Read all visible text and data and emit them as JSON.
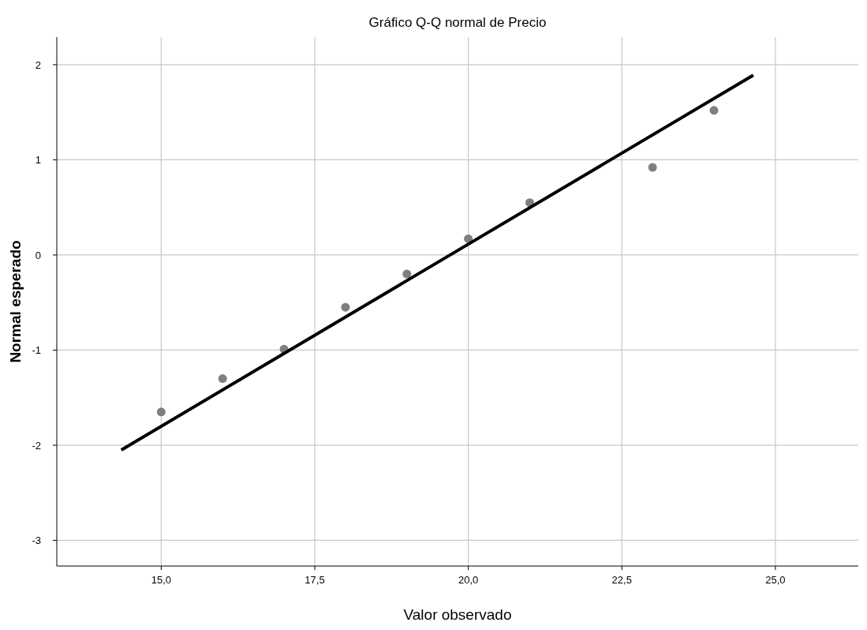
{
  "chart_data": {
    "type": "scatter",
    "title": "Gráfico Q-Q normal de Precio",
    "xlabel": "Valor observado",
    "ylabel": "Normal esperado",
    "xlim": [
      13.3,
      26.35
    ],
    "ylim": [
      -3.27,
      2.29
    ],
    "xticks": [
      {
        "value": 15,
        "label": "15,0"
      },
      {
        "value": 17.5,
        "label": "17,5"
      },
      {
        "value": 20,
        "label": "20,0"
      },
      {
        "value": 22.5,
        "label": "22,5"
      },
      {
        "value": 25,
        "label": "25,0"
      }
    ],
    "yticks": [
      -3,
      -2,
      -1,
      0,
      1,
      2
    ],
    "grid": true,
    "series": [
      {
        "type": "scatter",
        "marker": "circle",
        "color": "#7f7f7f",
        "x": [
          15,
          16,
          17,
          18,
          19,
          20,
          21,
          23,
          24
        ],
        "values": [
          -1.65,
          -1.3,
          -0.99,
          -0.55,
          -0.2,
          0.17,
          0.55,
          0.92,
          1.52
        ]
      },
      {
        "type": "line",
        "color": "#000000",
        "x": [
          14.35,
          24.64
        ],
        "values": [
          -2.05,
          1.89
        ]
      }
    ]
  }
}
